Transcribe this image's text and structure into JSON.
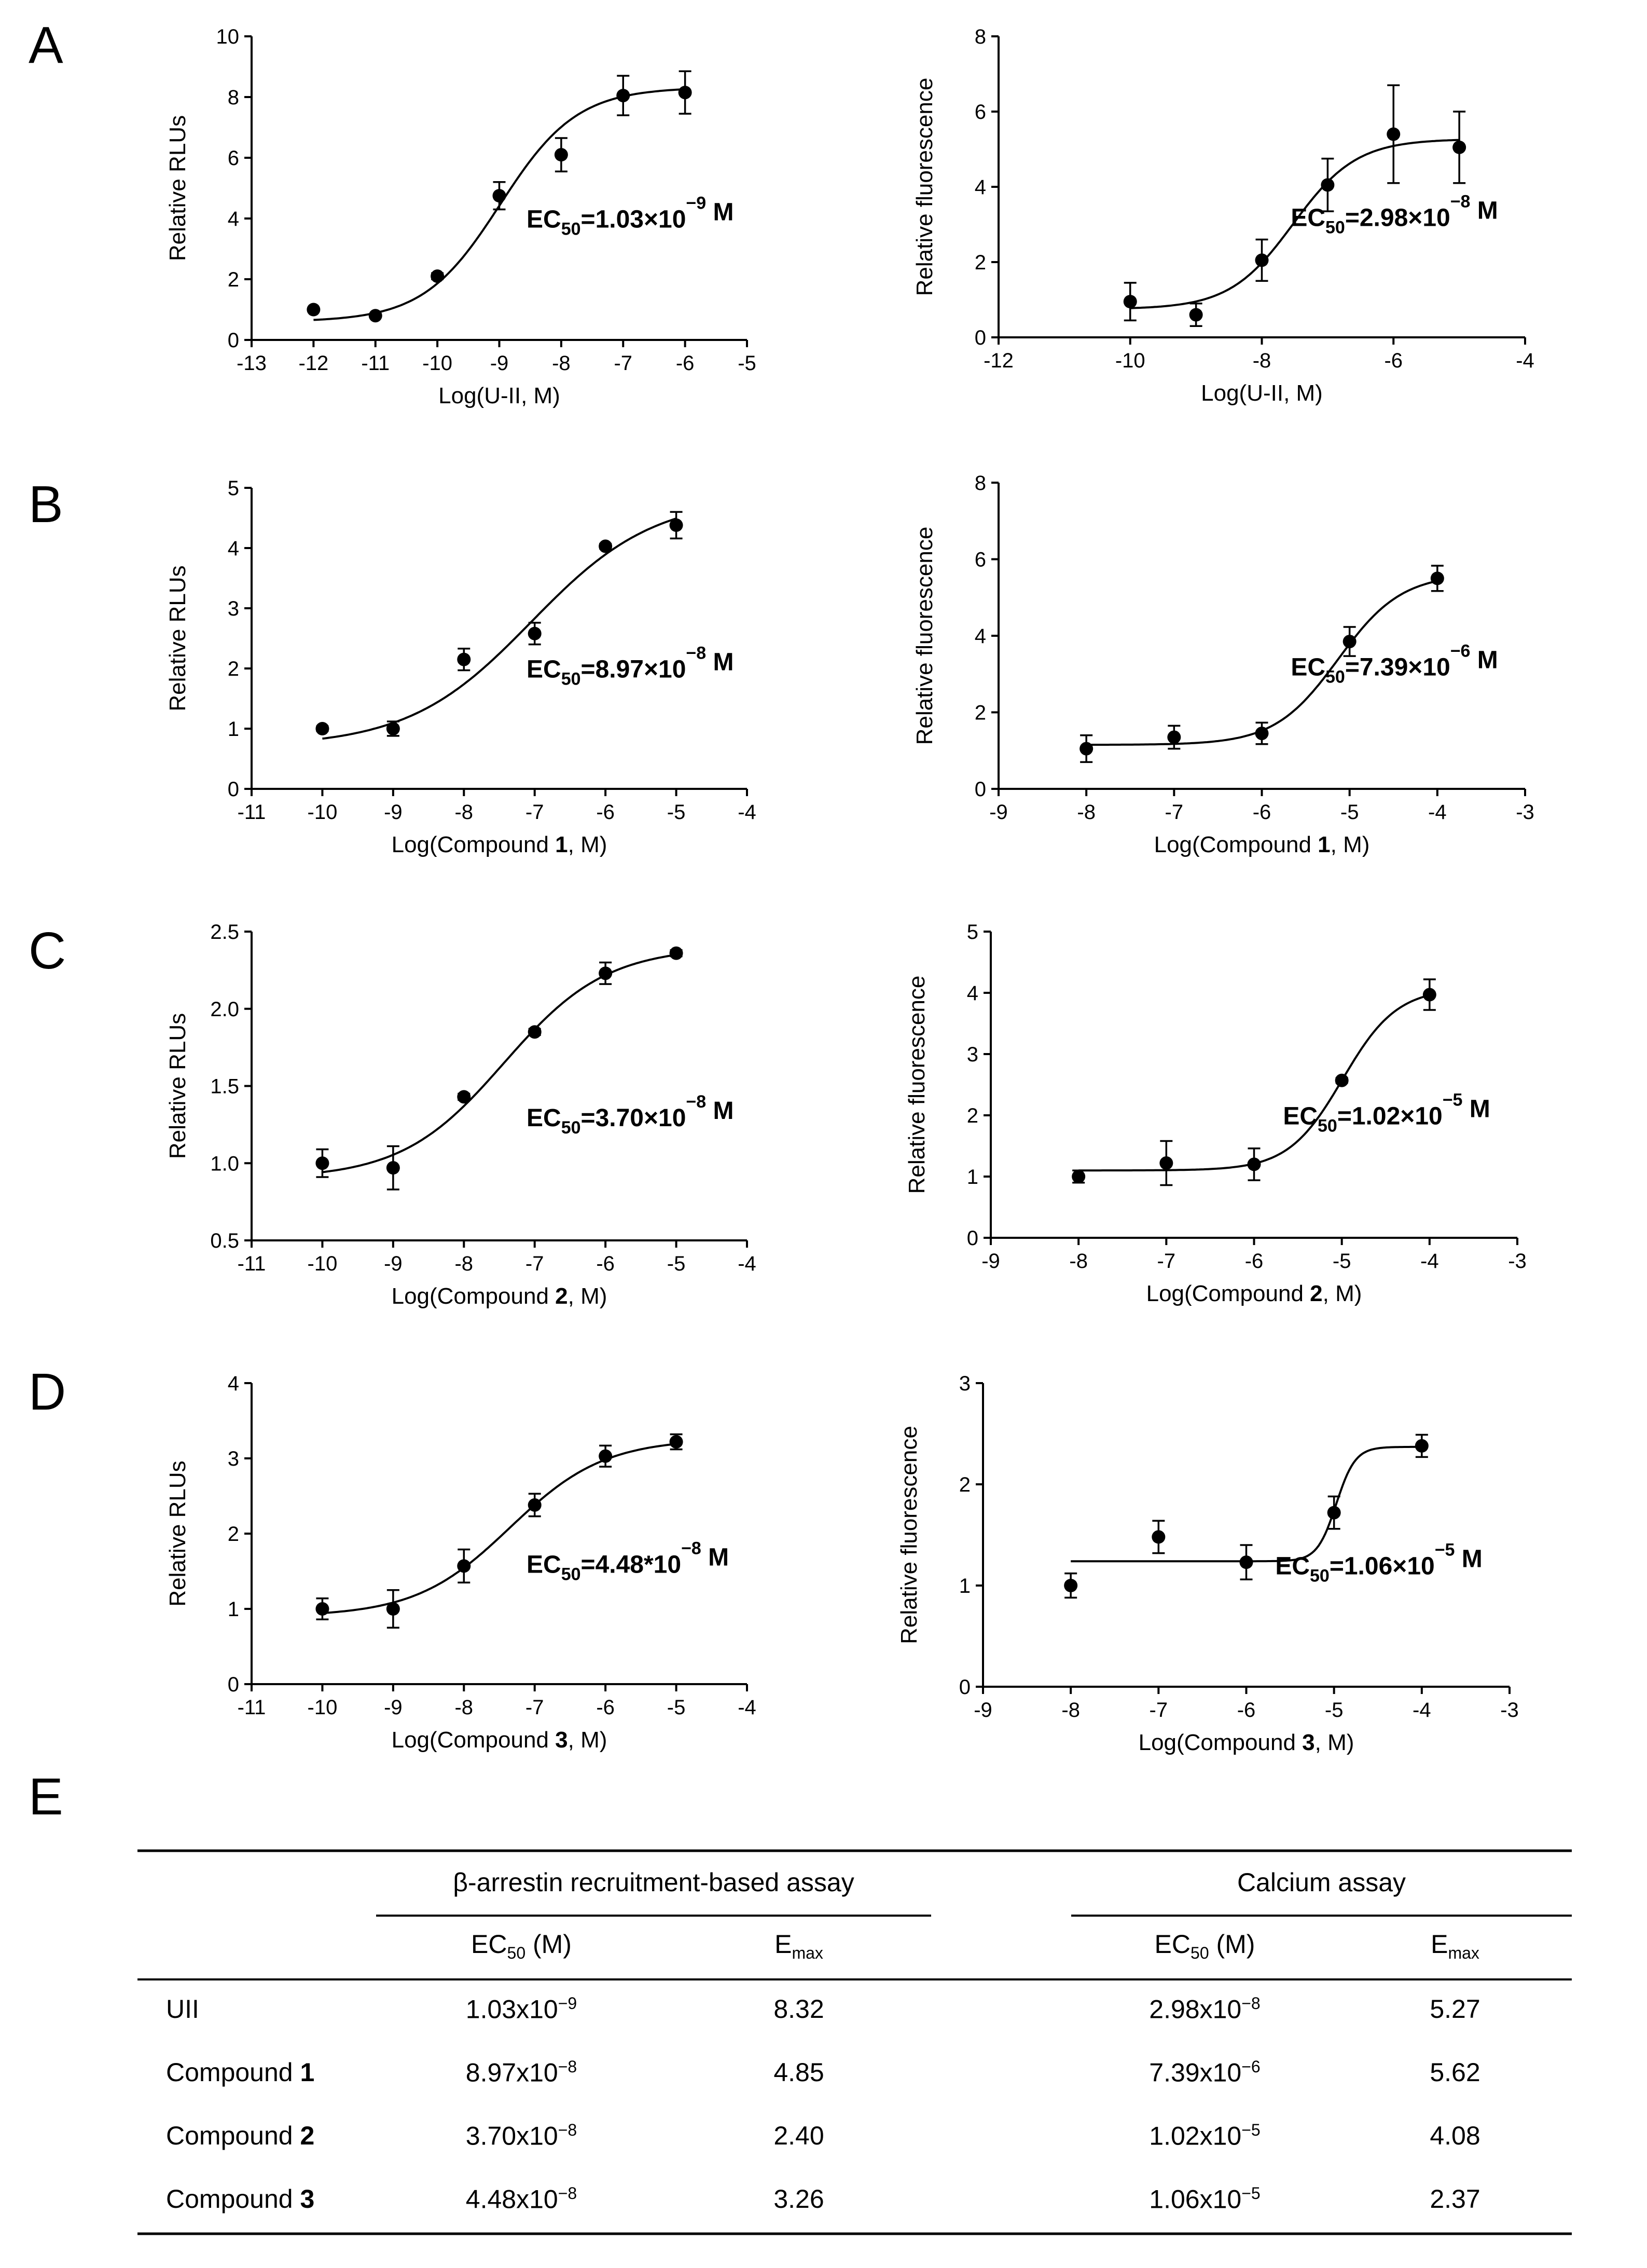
{
  "panels": [
    "A",
    "B",
    "C",
    "D",
    "E"
  ],
  "chart_data": [
    {
      "id": "A-left",
      "type": "scatter",
      "fit": "sigmoidal dose-response",
      "xlabel_parts": [
        "Log(U-II, M)"
      ],
      "ylabel": "Relative RLUs",
      "xlim": [
        -13,
        -5
      ],
      "ylim": [
        0,
        10
      ],
      "xticks": [
        -13,
        -12,
        -11,
        -10,
        -9,
        -8,
        -7,
        -6,
        -5
      ],
      "yticks": [
        0,
        2,
        4,
        6,
        8,
        10
      ],
      "x": [
        -12,
        -11,
        -10,
        -9,
        -8,
        -7,
        -6
      ],
      "y": [
        1.0,
        0.8,
        2.1,
        4.75,
        6.1,
        8.05,
        8.15
      ],
      "err": [
        0.05,
        0.05,
        0.1,
        0.45,
        0.55,
        0.65,
        0.7
      ],
      "fit_params": {
        "bottom": 0.6,
        "top": 8.32,
        "logEC50": -8.987,
        "hill": 0.7
      },
      "annotation": {
        "base": "EC",
        "sub": "50",
        "mid": "=1.03×10",
        "sup": "−9",
        "end": " M"
      }
    },
    {
      "id": "A-right",
      "type": "scatter",
      "fit": "sigmoidal dose-response",
      "xlabel_parts": [
        "Log(U-II, M)"
      ],
      "ylabel": "Relative fluorescence",
      "xlim": [
        -12,
        -4
      ],
      "ylim": [
        0,
        8
      ],
      "xticks": [
        -12,
        -10,
        -8,
        -6,
        -4
      ],
      "yticks": [
        0,
        2,
        4,
        6,
        8
      ],
      "x": [
        -10,
        -9,
        -8,
        -7,
        -6,
        -5
      ],
      "y": [
        0.95,
        0.6,
        2.05,
        4.05,
        5.4,
        5.05
      ],
      "err": [
        0.5,
        0.3,
        0.55,
        0.7,
        1.3,
        0.95
      ],
      "fit_params": {
        "bottom": 0.75,
        "top": 5.27,
        "logEC50": -7.526,
        "hill": 0.9
      },
      "annotation": {
        "base": "EC",
        "sub": "50",
        "mid": "=2.98×10",
        "sup": "−8",
        "end": " M"
      }
    },
    {
      "id": "B-left",
      "type": "scatter",
      "fit": "sigmoidal dose-response",
      "xlabel_parts": [
        "Log(Compound ",
        "1",
        ", M)"
      ],
      "ylabel": "Relative RLUs",
      "xlim": [
        -11,
        -4
      ],
      "ylim": [
        0,
        5
      ],
      "xticks": [
        -11,
        -10,
        -9,
        -8,
        -7,
        -6,
        -5,
        -4
      ],
      "yticks": [
        0,
        1,
        2,
        3,
        4,
        5
      ],
      "x": [
        -10,
        -9,
        -8,
        -7,
        -6,
        -5
      ],
      "y": [
        1.0,
        1.0,
        2.15,
        2.58,
        4.03,
        4.38
      ],
      "err": [
        0.04,
        0.12,
        0.18,
        0.18,
        0.04,
        0.22
      ],
      "fit_params": {
        "bottom": 0.7,
        "top": 4.85,
        "logEC50": -7.047,
        "hill": 0.5
      },
      "annotation": {
        "base": "EC",
        "sub": "50",
        "mid": "=8.97×10",
        "sup": "−8",
        "end": " M"
      }
    },
    {
      "id": "B-right",
      "type": "scatter",
      "fit": "sigmoidal dose-response",
      "xlabel_parts": [
        "Log(Compound ",
        "1",
        ", M)"
      ],
      "ylabel": "Relative fluorescence",
      "xlim": [
        -9,
        -3
      ],
      "ylim": [
        0,
        8
      ],
      "xticks": [
        -9,
        -8,
        -7,
        -6,
        -5,
        -4,
        -3
      ],
      "yticks": [
        0,
        2,
        4,
        6,
        8
      ],
      "x": [
        -8,
        -7,
        -6,
        -5,
        -4
      ],
      "y": [
        1.05,
        1.35,
        1.45,
        3.85,
        5.5
      ],
      "err": [
        0.35,
        0.3,
        0.28,
        0.38,
        0.33
      ],
      "fit_params": {
        "bottom": 1.15,
        "top": 5.62,
        "logEC50": -5.131,
        "hill": 1.2
      },
      "annotation": {
        "base": "EC",
        "sub": "50",
        "mid": "=7.39×10",
        "sup": "−6",
        "end": " M"
      }
    },
    {
      "id": "C-left",
      "type": "scatter",
      "fit": "sigmoidal dose-response",
      "xlabel_parts": [
        "Log(Compound ",
        "2",
        ", M)"
      ],
      "ylabel": "Relative RLUs",
      "xlim": [
        -11,
        -4
      ],
      "ylim": [
        0.5,
        2.5
      ],
      "xticks": [
        -11,
        -10,
        -9,
        -8,
        -7,
        -6,
        -5,
        -4
      ],
      "yticks": [
        0.5,
        1.0,
        1.5,
        2.0,
        2.5
      ],
      "x": [
        -10,
        -9,
        -8,
        -7,
        -6,
        -5
      ],
      "y": [
        1.0,
        0.97,
        1.43,
        1.85,
        2.23,
        2.36
      ],
      "err": [
        0.09,
        0.14,
        0.02,
        0.02,
        0.07,
        0.02
      ],
      "fit_params": {
        "bottom": 0.9,
        "top": 2.4,
        "logEC50": -7.432,
        "hill": 0.6
      },
      "annotation": {
        "base": "EC",
        "sub": "50",
        "mid": "=3.70×10",
        "sup": "−8",
        "end": " M"
      }
    },
    {
      "id": "C-right",
      "type": "scatter",
      "fit": "sigmoidal dose-response",
      "xlabel_parts": [
        "Log(Compound ",
        "2",
        ", M)"
      ],
      "ylabel": "Relative fluorescence",
      "xlim": [
        -9,
        -3
      ],
      "ylim": [
        0,
        5
      ],
      "xticks": [
        -9,
        -8,
        -7,
        -6,
        -5,
        -4,
        -3
      ],
      "yticks": [
        0,
        1,
        2,
        3,
        4,
        5
      ],
      "x": [
        -8,
        -7,
        -6,
        -5,
        -4
      ],
      "y": [
        1.0,
        1.22,
        1.2,
        2.57,
        3.97
      ],
      "err": [
        0.1,
        0.36,
        0.26,
        0.04,
        0.25
      ],
      "fit_params": {
        "bottom": 1.1,
        "top": 4.08,
        "logEC50": -4.991,
        "hill": 1.4
      },
      "annotation": {
        "base": "EC",
        "sub": "50",
        "mid": "=1.02×10",
        "sup": "−5",
        "end": " M"
      }
    },
    {
      "id": "D-left",
      "type": "scatter",
      "fit": "sigmoidal dose-response",
      "xlabel_parts": [
        "Log(Compound ",
        "3",
        ", M)"
      ],
      "ylabel": "Relative RLUs",
      "xlim": [
        -11,
        -4
      ],
      "ylim": [
        0,
        4
      ],
      "xticks": [
        -11,
        -10,
        -9,
        -8,
        -7,
        -6,
        -5,
        -4
      ],
      "yticks": [
        0,
        1,
        2,
        3,
        4
      ],
      "x": [
        -10,
        -9,
        -8,
        -7,
        -6,
        -5
      ],
      "y": [
        1.0,
        1.0,
        1.57,
        2.38,
        3.03,
        3.22
      ],
      "err": [
        0.14,
        0.25,
        0.22,
        0.15,
        0.14,
        0.1
      ],
      "fit_params": {
        "bottom": 0.9,
        "top": 3.26,
        "logEC50": -7.349,
        "hill": 0.65
      },
      "annotation": {
        "base": "EC",
        "sub": "50",
        "mid": "=4.48*10",
        "sup": "−8",
        "end": " M"
      }
    },
    {
      "id": "D-right",
      "type": "scatter",
      "fit": "sigmoidal dose-response",
      "xlabel_parts": [
        "Log(Compound ",
        "3",
        ", M)"
      ],
      "ylabel": "Relative fluorescence",
      "xlim": [
        -9,
        -3
      ],
      "ylim": [
        0,
        3
      ],
      "xticks": [
        -9,
        -8,
        -7,
        -6,
        -5,
        -4,
        -3
      ],
      "yticks": [
        0,
        1,
        2,
        3
      ],
      "x": [
        -8,
        -7,
        -6,
        -5,
        -4
      ],
      "y": [
        1.0,
        1.48,
        1.23,
        1.72,
        2.38
      ],
      "err": [
        0.12,
        0.16,
        0.17,
        0.16,
        0.11
      ],
      "fit_params": {
        "bottom": 1.24,
        "top": 2.37,
        "logEC50": -4.975,
        "hill": 4.0
      },
      "annotation": {
        "base": "EC",
        "sub": "50",
        "mid": "=1.06×10",
        "sup": "−5",
        "end": " M"
      }
    }
  ],
  "table": {
    "group1": "β-arrestin recruitment-based assay",
    "group2": "Calcium assay",
    "ec50_base": "EC",
    "ec50_sub": "50",
    "ec50_unit": " (M)",
    "emax_base": "E",
    "emax_sub": "max",
    "rows": [
      {
        "label": "UII",
        "bold": "",
        "ec50_a_mant": "1.03x10",
        "ec50_a_exp": "−9",
        "emax_a": "8.32",
        "ec50_c_mant": "2.98x10",
        "ec50_c_exp": "−8",
        "emax_c": "5.27"
      },
      {
        "label": "Compound ",
        "bold": "1",
        "ec50_a_mant": "8.97x10",
        "ec50_a_exp": "−8",
        "emax_a": "4.85",
        "ec50_c_mant": "7.39x10",
        "ec50_c_exp": "−6",
        "emax_c": "5.62"
      },
      {
        "label": "Compound ",
        "bold": "2",
        "ec50_a_mant": "3.70x10",
        "ec50_a_exp": "−8",
        "emax_a": "2.40",
        "ec50_c_mant": "1.02x10",
        "ec50_c_exp": "−5",
        "emax_c": "4.08"
      },
      {
        "label": "Compound ",
        "bold": "3",
        "ec50_a_mant": "4.48x10",
        "ec50_a_exp": "−8",
        "emax_a": "3.26",
        "ec50_c_mant": "1.06x10",
        "ec50_c_exp": "−5",
        "emax_c": "2.37"
      }
    ]
  }
}
